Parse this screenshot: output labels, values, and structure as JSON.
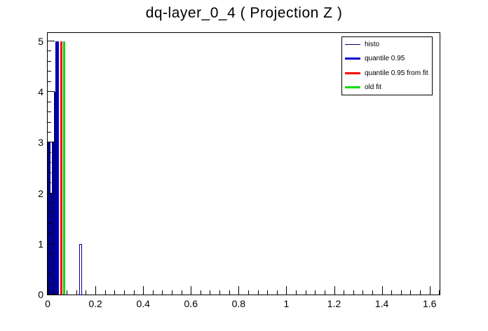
{
  "title": "dq-layer_0_4 ( Projection Z )",
  "chart_data": {
    "type": "bar",
    "title": "dq-layer_0_4 ( Projection Z )",
    "xlabel": "",
    "ylabel": "",
    "xlim": [
      0,
      1.642
    ],
    "ylim": [
      0,
      5.166
    ],
    "grid": false,
    "x_major_ticks": [
      0,
      0.2,
      0.4,
      0.6,
      0.8,
      1,
      1.2,
      1.4,
      1.6
    ],
    "x_tick_labels": [
      "0",
      "0.2",
      "0.4",
      "0.6",
      "0.8",
      "1",
      "1.2",
      "1.4",
      "1.6"
    ],
    "x_minor_step": 0.04,
    "y_major_ticks": [
      0,
      1,
      2,
      3,
      4,
      5
    ],
    "y_tick_labels": [
      "0",
      "1",
      "2",
      "3",
      "4",
      "5"
    ],
    "y_minor_step": 0.2,
    "histogram": {
      "name": "histo",
      "color": "#00008b",
      "bars": [
        {
          "x1": 0.0,
          "x2": 0.0045,
          "h": 3
        },
        {
          "x1": 0.0045,
          "x2": 0.0065,
          "h": 1
        },
        {
          "x1": 0.0065,
          "x2": 0.0117,
          "h": 3
        },
        {
          "x1": 0.0117,
          "x2": 0.0176,
          "h": 2
        },
        {
          "x1": 0.0176,
          "x2": 0.0265,
          "h": 3
        },
        {
          "x1": 0.0265,
          "x2": 0.0324,
          "h": 4
        },
        {
          "x1": 0.0324,
          "x2": 0.0382,
          "h": 5
        },
        {
          "x1": 0.0382,
          "x2": 0.0455,
          "h": 3
        }
      ],
      "outline_bars": [
        {
          "x1": 0.132,
          "x2": 0.145,
          "h": 1
        }
      ]
    },
    "vlines": [
      {
        "name": "quantile 0.95",
        "x": 0.0426,
        "top": 5,
        "color": "#0000cc",
        "width": 3
      },
      {
        "name": "quantile 0.95 from fit",
        "x": 0.0573,
        "top": 5,
        "color": "#ff0000",
        "width": 3
      },
      {
        "name": "old fit",
        "x": 0.069,
        "top": 5,
        "color": "#00dd00",
        "width": 3
      }
    ]
  },
  "legend": {
    "position": "top-right",
    "items": [
      {
        "label": "histo",
        "color": "#00008b",
        "thickness": 1
      },
      {
        "label": "quantile 0.95",
        "color": "#0000cc",
        "thickness": 3
      },
      {
        "label": "quantile 0.95 from fit",
        "color": "#ff0000",
        "thickness": 3
      },
      {
        "label": "old fit",
        "color": "#00dd00",
        "thickness": 3
      }
    ]
  }
}
